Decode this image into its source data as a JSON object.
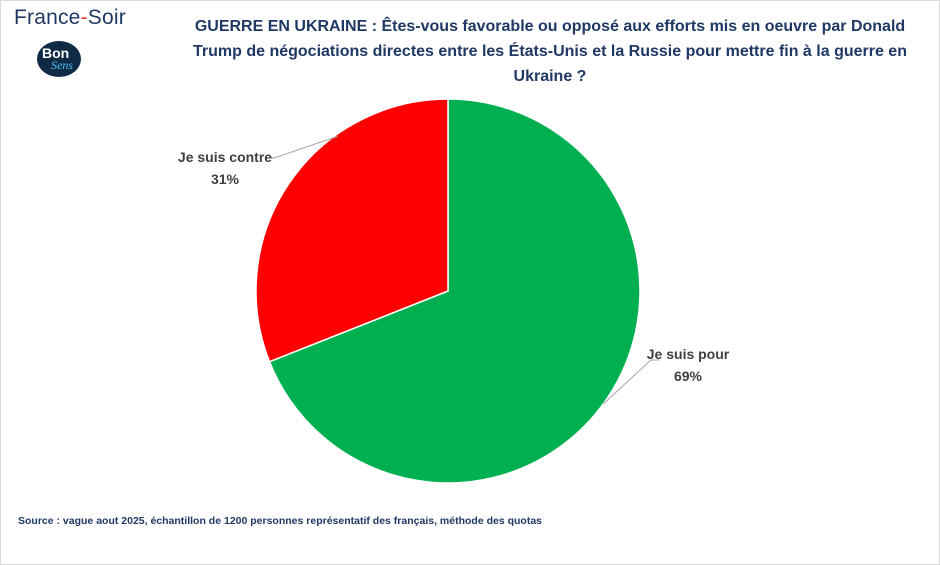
{
  "brand": {
    "name_part1": "France",
    "dash": "-",
    "name_part2": "Soir",
    "logo_line1": "Bon",
    "logo_line2": "Sens"
  },
  "chart_data": {
    "type": "pie",
    "title": "GUERRE EN UKRAINE :  Êtes-vous favorable ou opposé aux efforts mis en oeuvre par Donald Trump de négociations directes entre les États-Unis et la Russie pour mettre fin à la guerre en Ukraine ?",
    "slices": [
      {
        "label": "Je suis pour",
        "value": 69,
        "value_label": "69%",
        "color": "#00b050"
      },
      {
        "label": "Je suis contre",
        "value": 31,
        "value_label": "31%",
        "color": "#ff0000"
      }
    ],
    "legend": "none",
    "source": "Source : vague aout 2025, échantillon de 1200 personnes représentatif des français, méthode des quotas"
  }
}
